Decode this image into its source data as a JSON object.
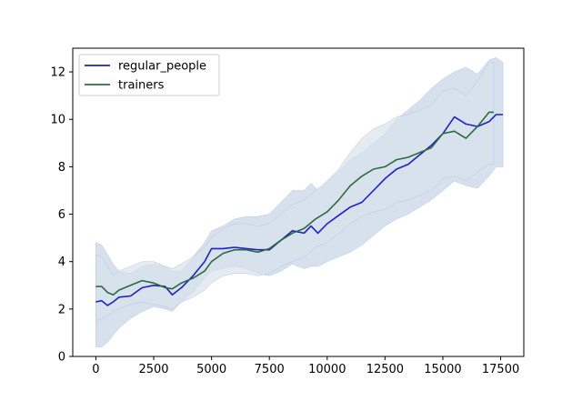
{
  "chart_data": {
    "type": "line",
    "title": "",
    "xlabel": "",
    "ylabel": "",
    "xlim": [
      -1000,
      18500
    ],
    "ylim": [
      0,
      13
    ],
    "xticks": [
      0,
      2500,
      5000,
      7500,
      10000,
      12500,
      15000,
      17500
    ],
    "xtick_labels": [
      "0",
      "2500",
      "5000",
      "7500",
      "10000",
      "12500",
      "15000",
      "17500"
    ],
    "yticks": [
      0,
      2,
      4,
      6,
      8,
      10,
      12
    ],
    "ytick_labels": [
      "0",
      "2",
      "4",
      "6",
      "8",
      "10",
      "12"
    ],
    "grid": false,
    "legend_position": "top-left",
    "series": [
      {
        "name": "regular_people",
        "color": "#1f1fcc",
        "band_color": "#c6d3e6",
        "x": [
          0,
          250,
          500,
          750,
          1000,
          1500,
          2000,
          2500,
          3000,
          3300,
          3700,
          4200,
          4700,
          5000,
          5500,
          6000,
          6500,
          7000,
          7500,
          8000,
          8500,
          9000,
          9300,
          9600,
          10000,
          10500,
          11000,
          11500,
          12000,
          12500,
          13000,
          13500,
          14000,
          14500,
          15000,
          15500,
          16000,
          16500,
          17000,
          17300,
          17600
        ],
        "values": [
          2.3,
          2.35,
          2.15,
          2.3,
          2.5,
          2.55,
          2.9,
          3.0,
          2.95,
          2.6,
          2.9,
          3.4,
          4.0,
          4.55,
          4.55,
          4.6,
          4.55,
          4.5,
          4.5,
          4.9,
          5.3,
          5.2,
          5.5,
          5.2,
          5.6,
          5.95,
          6.3,
          6.5,
          7.0,
          7.5,
          7.9,
          8.1,
          8.5,
          8.9,
          9.4,
          10.1,
          9.8,
          9.7,
          9.9,
          10.2,
          10.2
        ],
        "lower": [
          0.4,
          0.4,
          0.6,
          0.9,
          1.2,
          1.6,
          1.9,
          2.1,
          2.0,
          1.9,
          2.3,
          2.7,
          3.3,
          3.6,
          3.7,
          3.8,
          3.7,
          3.5,
          3.4,
          3.6,
          3.9,
          3.7,
          3.8,
          3.8,
          4.0,
          4.2,
          4.4,
          4.7,
          5.1,
          5.5,
          5.8,
          6.0,
          6.3,
          6.6,
          7.0,
          7.4,
          7.2,
          7.1,
          7.6,
          8.0,
          8.0
        ],
        "upper": [
          4.8,
          4.7,
          4.3,
          3.9,
          3.6,
          3.5,
          3.8,
          3.9,
          3.8,
          3.6,
          3.6,
          4.2,
          4.8,
          5.3,
          5.5,
          5.8,
          5.9,
          5.9,
          6.0,
          6.5,
          7.0,
          7.0,
          7.3,
          7.0,
          7.4,
          7.8,
          8.3,
          8.6,
          9.0,
          9.4,
          10.0,
          10.4,
          10.8,
          11.3,
          11.7,
          12.0,
          12.2,
          11.9,
          12.5,
          12.6,
          12.4
        ]
      },
      {
        "name": "trainers",
        "color": "#2d6a3e",
        "band_color": "#d9e2ec",
        "x": [
          0,
          250,
          500,
          750,
          1000,
          1500,
          2000,
          2500,
          3000,
          3300,
          3700,
          4200,
          4700,
          5000,
          5500,
          6000,
          6500,
          7000,
          7500,
          8000,
          8500,
          9000,
          9500,
          10000,
          10500,
          11000,
          11500,
          12000,
          12500,
          13000,
          13500,
          14000,
          14500,
          15000,
          15500,
          16000,
          16500,
          17000,
          17200
        ],
        "values": [
          2.95,
          2.95,
          2.7,
          2.6,
          2.8,
          3.0,
          3.2,
          3.1,
          2.9,
          2.85,
          3.1,
          3.3,
          3.6,
          4.0,
          4.35,
          4.5,
          4.5,
          4.4,
          4.55,
          4.9,
          5.2,
          5.4,
          5.8,
          6.1,
          6.6,
          7.2,
          7.6,
          7.9,
          8.0,
          8.3,
          8.4,
          8.6,
          8.8,
          9.4,
          9.5,
          9.2,
          9.7,
          10.3,
          10.3
        ],
        "lower": [
          1.5,
          1.6,
          1.7,
          1.9,
          2.0,
          2.2,
          2.3,
          2.2,
          2.1,
          2.0,
          2.3,
          2.5,
          2.8,
          3.1,
          3.4,
          3.5,
          3.5,
          3.4,
          3.5,
          3.8,
          4.0,
          4.2,
          4.6,
          4.8,
          5.2,
          5.6,
          5.9,
          6.1,
          6.2,
          6.5,
          6.6,
          6.8,
          7.0,
          7.5,
          7.6,
          7.4,
          7.8,
          8.1,
          8.1
        ],
        "upper": [
          4.3,
          4.2,
          3.8,
          3.4,
          3.6,
          3.8,
          4.0,
          4.0,
          3.8,
          3.7,
          3.9,
          4.2,
          4.6,
          5.0,
          5.4,
          5.6,
          5.6,
          5.5,
          5.6,
          6.0,
          6.4,
          6.6,
          7.0,
          7.4,
          7.9,
          8.6,
          9.2,
          9.6,
          9.8,
          10.1,
          10.2,
          10.4,
          10.6,
          11.2,
          11.3,
          11.0,
          11.6,
          12.4,
          12.4
        ]
      }
    ]
  }
}
